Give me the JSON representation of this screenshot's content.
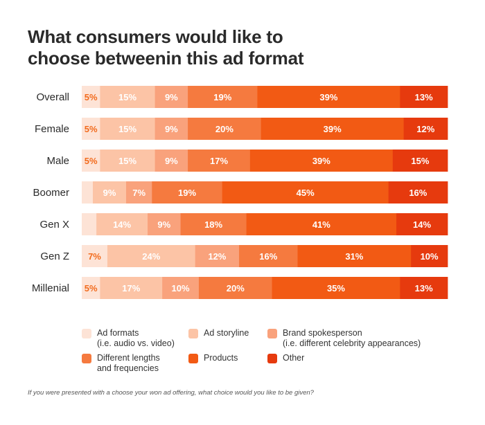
{
  "title_lines": [
    "What consumers would like to",
    "choose betweenin this  ad format"
  ],
  "footnote": "If you were presented with a choose your won ad offering, what choice would you like to be given?",
  "chart_data": {
    "type": "bar",
    "orientation": "horizontal",
    "stacked": true,
    "categories": [
      "Overall",
      "Female",
      "Male",
      "Boomer",
      "Gen X",
      "Gen Z",
      "Millenial"
    ],
    "series": [
      {
        "name": "Ad formats (i.e. audio vs. video)",
        "legend_lines": [
          "Ad formats",
          "(i.e. audio vs. video)"
        ],
        "color": "#fde3d6",
        "label_color": "#f26b1d",
        "values": [
          5,
          5,
          5,
          3,
          4,
          7,
          5
        ],
        "labels": [
          "5%",
          "5%",
          "5%",
          "",
          "",
          "7%",
          "5%"
        ]
      },
      {
        "name": "Ad storyline",
        "legend_lines": [
          "Ad storyline"
        ],
        "color": "#fcc4a6",
        "label_color": "#ffffff",
        "values": [
          15,
          15,
          15,
          9,
          14,
          24,
          17
        ],
        "labels": [
          "15%",
          "15%",
          "15%",
          "9%",
          "14%",
          "24%",
          "17%"
        ]
      },
      {
        "name": "Brand spokesperson (i.e. different celebrity appearances)",
        "legend_lines": [
          "Brand spokesperson",
          "(i.e. different celebrity appearances)"
        ],
        "color": "#f9a27c",
        "label_color": "#ffffff",
        "values": [
          9,
          9,
          9,
          7,
          9,
          12,
          10
        ],
        "labels": [
          "9%",
          "9%",
          "9%",
          "7%",
          "9%",
          "12%",
          "10%"
        ]
      },
      {
        "name": "Different lengths and frequencies",
        "legend_lines": [
          "Different lengths",
          "and frequencies"
        ],
        "color": "#f57a3f",
        "label_color": "#ffffff",
        "values": [
          19,
          20,
          17,
          19,
          18,
          16,
          20
        ],
        "labels": [
          "19%",
          "20%",
          "17%",
          "19%",
          "18%",
          "16%",
          "20%"
        ]
      },
      {
        "name": "Products",
        "legend_lines": [
          "Products"
        ],
        "color": "#f25a14",
        "label_color": "#ffffff",
        "values": [
          39,
          39,
          39,
          45,
          41,
          31,
          35
        ],
        "labels": [
          "39%",
          "39%",
          "39%",
          "45%",
          "41%",
          "31%",
          "35%"
        ]
      },
      {
        "name": "Other",
        "legend_lines": [
          "Other"
        ],
        "color": "#e63a0e",
        "label_color": "#ffffff",
        "values": [
          13,
          12,
          15,
          16,
          14,
          10,
          13
        ],
        "labels": [
          "13%",
          "12%",
          "15%",
          "16%",
          "14%",
          "10%",
          "13%"
        ]
      }
    ]
  }
}
